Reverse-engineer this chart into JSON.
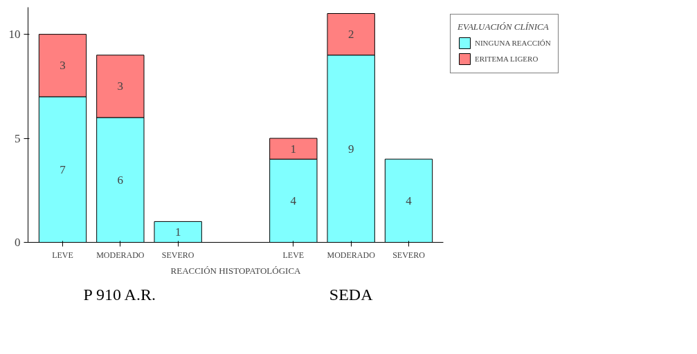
{
  "chart_data": {
    "type": "bar",
    "stacked": true,
    "categories": [
      "LEVE",
      "MODERADO",
      "SEVERO",
      "LEVE",
      "MODERADO",
      "SEVERO"
    ],
    "series": [
      {
        "name": "NINGUNA REACCIÓN",
        "color": "#80ffff",
        "values": [
          7,
          6,
          1,
          4,
          9,
          4
        ]
      },
      {
        "name": "ERITEMA LIGERO",
        "color": "#ff8080",
        "values": [
          3,
          3,
          null,
          1,
          2,
          null
        ]
      }
    ],
    "xlabel": "REACCIÓN HISTOPATOLÓGICA",
    "legend_title": "EVALUACIÓN CLÍNICA",
    "annotations": [
      "P 910 A.R.",
      "SEDA"
    ],
    "ylim": [
      0,
      11.3
    ],
    "yticks": [
      0,
      5,
      10
    ],
    "grid": false,
    "legend": "right",
    "data_labels": true
  }
}
